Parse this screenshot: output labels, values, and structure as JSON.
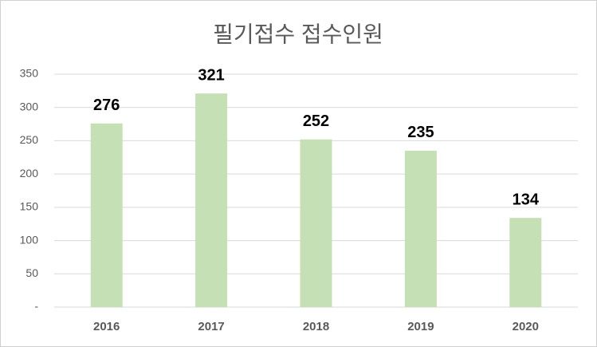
{
  "chart_data": {
    "type": "bar",
    "title": "필기접수 접수인원",
    "categories": [
      "2016",
      "2017",
      "2018",
      "2019",
      "2020"
    ],
    "values": [
      276,
      321,
      252,
      235,
      134
    ],
    "color": "#c5e0b4",
    "ylim": [
      0,
      350
    ],
    "yticks": [
      {
        "value": 0,
        "label": "-"
      },
      50,
      100,
      150,
      200,
      250,
      300,
      350
    ],
    "grid": true
  }
}
